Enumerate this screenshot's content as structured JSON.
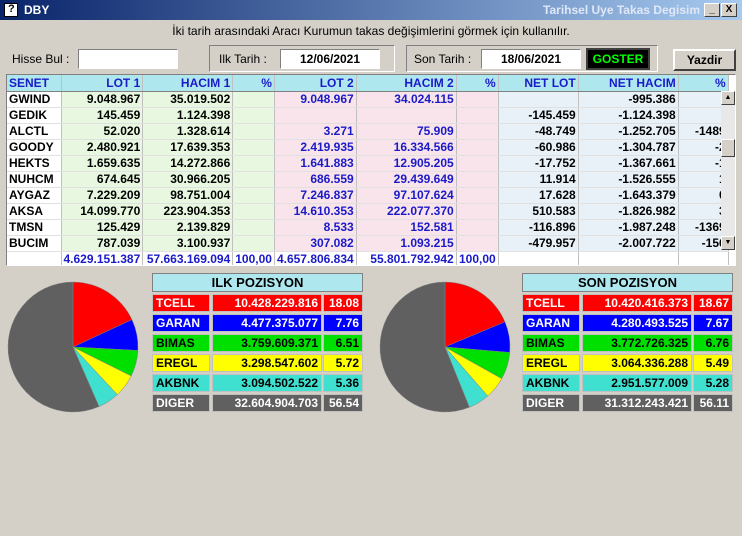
{
  "window": {
    "title": "DBY",
    "right_title": "Tarihsel Uye Takas Degisim",
    "minimize": "_",
    "close": "X"
  },
  "hint": "İki tarih arasındaki  Aracı Kurumun takas değişimlerini görmek için kullanılır.",
  "filters": {
    "search_label": "Hisse Bul :",
    "search_value": "",
    "start_label": "Ilk Tarih :",
    "start_date": "12/06/2021",
    "end_label": "Son Tarih :",
    "end_date": "18/06/2021",
    "show_button": "GOSTER",
    "print_button": "Yazdir"
  },
  "grid": {
    "headers": [
      "SENET",
      "LOT 1",
      "HACIM 1",
      "%",
      "LOT 2",
      "HACIM 2",
      "%",
      "NET LOT",
      "NET HACIM",
      "%"
    ],
    "rows": [
      [
        "GWIND",
        "9.048.967",
        "35.019.502",
        "",
        "9.048.967",
        "34.024.115",
        "",
        "",
        "-995.386",
        ""
      ],
      [
        "GEDIK",
        "145.459",
        "1.124.398",
        "",
        "",
        "",
        "",
        "-145.459",
        "-1.124.398",
        ""
      ],
      [
        "ALCTL",
        "52.020",
        "1.328.614",
        "",
        "3.271",
        "75.909",
        "",
        "-48.749",
        "-1.252.705",
        "-1489"
      ],
      [
        "GOODY",
        "2.480.921",
        "17.639.353",
        "",
        "2.419.935",
        "16.334.566",
        "",
        "-60.986",
        "-1.304.787",
        "-2"
      ],
      [
        "HEKTS",
        "1.659.635",
        "14.272.866",
        "",
        "1.641.883",
        "12.905.205",
        "",
        "-17.752",
        "-1.367.661",
        "-1"
      ],
      [
        "NUHCM",
        "674.645",
        "30.966.205",
        "",
        "686.559",
        "29.439.649",
        "",
        "11.914",
        "-1.526.555",
        "1"
      ],
      [
        "AYGAZ",
        "7.229.209",
        "98.751.004",
        "",
        "7.246.837",
        "97.107.624",
        "",
        "17.628",
        "-1.643.379",
        "0"
      ],
      [
        "AKSA",
        "14.099.770",
        "223.904.353",
        "",
        "14.610.353",
        "222.077.370",
        "",
        "510.583",
        "-1.826.982",
        "3"
      ],
      [
        "TMSN",
        "125.429",
        "2.139.829",
        "",
        "8.533",
        "152.581",
        "",
        "-116.896",
        "-1.987.248",
        "-1369"
      ],
      [
        "BUCIM",
        "787.039",
        "3.100.937",
        "",
        "307.082",
        "1.093.215",
        "",
        "-479.957",
        "-2.007.722",
        "-156"
      ]
    ],
    "totals": [
      "",
      "4.629.151.387",
      "57.663.169.094",
      "100,00",
      "4.657.806.834",
      "55.801.792.942",
      "100,00",
      "",
      "",
      ""
    ]
  },
  "ilk_pozisyon": {
    "title": "ILK POZISYON",
    "rows": [
      {
        "name": "TCELL",
        "value": "10.428.229.816",
        "pct": "18.08",
        "color": "#ff0000",
        "text": "#ffffff"
      },
      {
        "name": "GARAN",
        "value": "4.477.375.077",
        "pct": "7.76",
        "color": "#0000ff",
        "text": "#ffffff"
      },
      {
        "name": "BIMAS",
        "value": "3.759.609.371",
        "pct": "6.51",
        "color": "#00e000",
        "text": "#000000"
      },
      {
        "name": "EREGL",
        "value": "3.298.547.602",
        "pct": "5.72",
        "color": "#ffff00",
        "text": "#000000"
      },
      {
        "name": "AKBNK",
        "value": "3.094.502.522",
        "pct": "5.36",
        "color": "#40e0d0",
        "text": "#000000"
      },
      {
        "name": "DIGER",
        "value": "32.604.904.703",
        "pct": "56.54",
        "color": "#606060",
        "text": "#ffffff"
      }
    ]
  },
  "son_pozisyon": {
    "title": "SON POZISYON",
    "rows": [
      {
        "name": "TCELL",
        "value": "10.420.416.373",
        "pct": "18.67",
        "color": "#ff0000",
        "text": "#ffffff"
      },
      {
        "name": "GARAN",
        "value": "4.280.493.525",
        "pct": "7.67",
        "color": "#0000ff",
        "text": "#ffffff"
      },
      {
        "name": "BIMAS",
        "value": "3.772.726.325",
        "pct": "6.76",
        "color": "#00e000",
        "text": "#000000"
      },
      {
        "name": "EREGL",
        "value": "3.064.336.288",
        "pct": "5.49",
        "color": "#ffff00",
        "text": "#000000"
      },
      {
        "name": "AKBNK",
        "value": "2.951.577.009",
        "pct": "5.28",
        "color": "#40e0d0",
        "text": "#000000"
      },
      {
        "name": "DIGER",
        "value": "31.312.243.421",
        "pct": "56.11",
        "color": "#606060",
        "text": "#ffffff"
      }
    ]
  }
}
